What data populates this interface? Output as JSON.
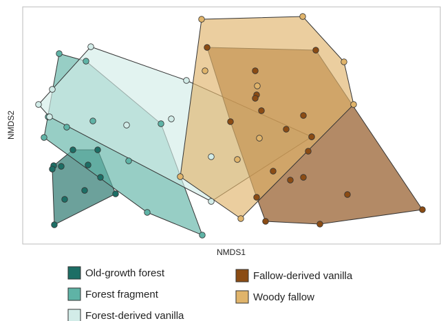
{
  "chart_data": {
    "type": "scatter",
    "xlabel": "NMDS1",
    "ylabel": "NMDS2",
    "xlim": [
      0,
      607
    ],
    "ylim": [
      0,
      345
    ],
    "hulls": true,
    "series": [
      {
        "name": "Old-growth forest",
        "color": "#1d6e65",
        "x": [
          73,
          109,
          56,
          45,
          43,
          95,
          113,
          90,
          135,
          61,
          46
        ],
        "y": [
          137,
          137,
          113,
          114,
          109,
          115,
          97,
          78,
          73,
          65,
          28
        ]
      },
      {
        "name": "Forest fragment",
        "color": "#5fb3a6",
        "x": [
          53,
          92,
          64,
          102,
          201,
          154,
          181,
          261,
          37,
          31
        ],
        "y": [
          277,
          266,
          170,
          179,
          175,
          121,
          46,
          13,
          185,
          155
        ]
      },
      {
        "name": "Forest-derived vanilla",
        "color": "#d2ece8",
        "x": [
          99,
          238,
          23,
          43,
          39,
          151,
          216,
          274,
          274,
          420
        ],
        "y": [
          287,
          238,
          203,
          225,
          185,
          173,
          182,
          127,
          62,
          156
        ]
      },
      {
        "name": "Fallow-derived vanilla",
        "color": "#8b4c14",
        "x": [
          268,
          426,
          338,
          340,
          338,
          347,
          408,
          302,
          383,
          420,
          415,
          364,
          408,
          389,
          340,
          472,
          353,
          432,
          581
        ],
        "y": [
          286,
          282,
          252,
          217,
          212,
          194,
          187,
          178,
          167,
          156,
          135,
          106,
          97,
          93,
          68,
          72,
          33,
          29,
          50
        ]
      },
      {
        "name": "Woody fallow",
        "color": "#e0b46b",
        "x": [
          260,
          407,
          467,
          265,
          341,
          344,
          312,
          229,
          317,
          481
        ],
        "y": [
          327,
          331,
          265,
          252,
          230,
          154,
          123,
          98,
          37,
          203
        ]
      }
    ]
  }
}
